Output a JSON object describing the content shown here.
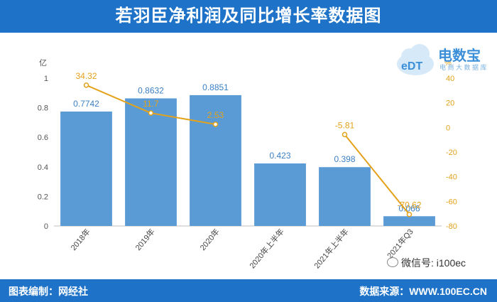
{
  "header": {
    "title": "若羽臣净利润及同比增长率数据图"
  },
  "footer": {
    "left": "图表编制：网经社",
    "right": "数据来源：WWW.100EC.CN"
  },
  "watermark": {
    "text": "微信号: i100ec"
  },
  "logo": {
    "name": "电数宝",
    "sub": "电 商 大 数 据 库"
  },
  "chart_data": {
    "type": "bar",
    "categories": [
      "2018年",
      "2019年",
      "2020年",
      "2020年上半年",
      "2021年上半年",
      "2021年Q3"
    ],
    "series": [
      {
        "values": [
          0.7742,
          0.8632,
          0.8851,
          0.423,
          0.398,
          0.066
        ],
        "labels": [
          "0.7742",
          "0.8632",
          "0.8851",
          "0.423",
          "0.398",
          "0.066"
        ],
        "color": "#5b9bd5",
        "axis": "left"
      },
      {
        "type": "line",
        "values": [
          34.32,
          11.7,
          2.53,
          null,
          -5.81,
          -70.62
        ],
        "labels": [
          "34.32",
          "11.7",
          "2.53",
          "",
          "-5.81",
          "-70.62"
        ],
        "color": "#e3a21a",
        "axis": "right"
      }
    ],
    "left_axis": {
      "unit": "亿",
      "ylim": [
        0,
        1
      ],
      "ticks": [
        "0",
        "0.2",
        "0.4",
        "0.6",
        "0.8",
        "1"
      ]
    },
    "right_axis": {
      "unit": "%",
      "ylim": [
        -80,
        40
      ],
      "ticks": [
        "-80",
        "-60",
        "-40",
        "-20",
        "0",
        "20",
        "40"
      ]
    }
  }
}
